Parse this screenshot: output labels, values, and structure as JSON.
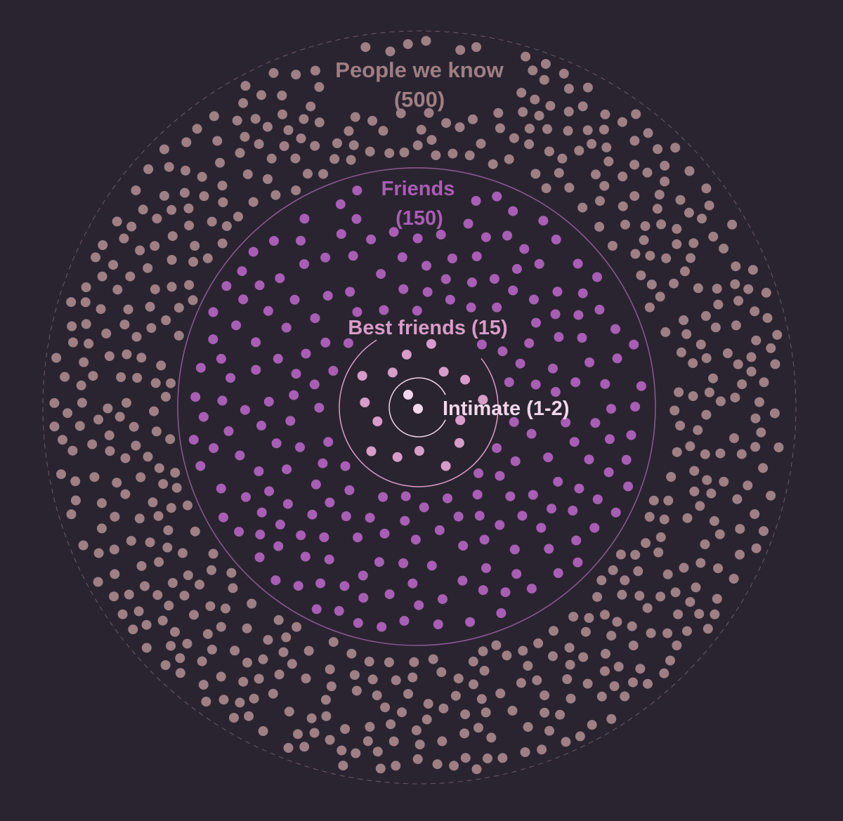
{
  "title": "",
  "colors": {
    "background": "#2a2430",
    "people_we_know": "#9e7f84",
    "friends": "#a85eb4",
    "best_friends": "#d89cc8",
    "intimate": "#f1d6ec"
  },
  "rings": {
    "people_we_know": {
      "label_line1": "People we know",
      "label_line2": "(500)",
      "count": 500
    },
    "friends": {
      "label_line1": "Friends",
      "label_line2": "(150)",
      "count": 150
    },
    "best_friends": {
      "label": "Best friends (15)",
      "count": 15
    },
    "intimate": {
      "label": "Intimate (1-2)",
      "count": 2
    }
  }
}
